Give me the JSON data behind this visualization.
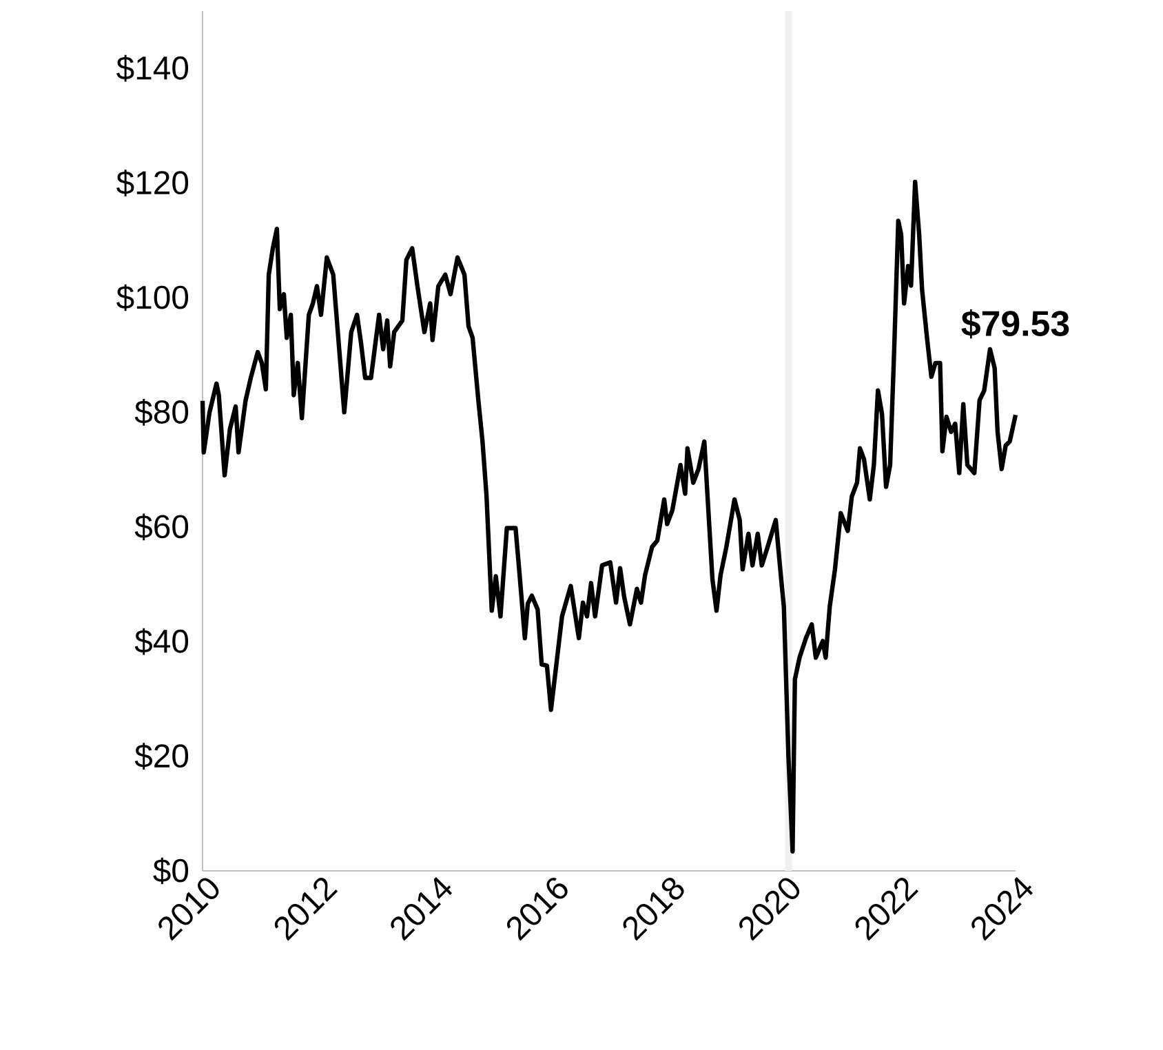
{
  "chart_data": {
    "type": "line",
    "x": [
      2010.0,
      2010.02,
      2010.12,
      2010.24,
      2010.28,
      2010.38,
      2010.47,
      2010.57,
      2010.62,
      2010.74,
      2010.83,
      2010.95,
      2011.02,
      2011.09,
      2011.14,
      2011.21,
      2011.28,
      2011.33,
      2011.4,
      2011.45,
      2011.52,
      2011.57,
      2011.64,
      2011.71,
      2011.83,
      2011.9,
      2011.97,
      2012.04,
      2012.14,
      2012.25,
      2012.44,
      2012.56,
      2012.66,
      2012.73,
      2012.8,
      2012.9,
      2013.04,
      2013.11,
      2013.18,
      2013.23,
      2013.3,
      2013.44,
      2013.51,
      2013.61,
      2013.7,
      2013.82,
      2013.92,
      2013.96,
      2014.06,
      2014.18,
      2014.27,
      2014.39,
      2014.51,
      2014.58,
      2014.65,
      2014.75,
      2014.82,
      2014.89,
      2014.98,
      2015.05,
      2015.13,
      2015.24,
      2015.39,
      2015.46,
      2015.55,
      2015.6,
      2015.67,
      2015.77,
      2015.84,
      2015.93,
      2016.0,
      2016.12,
      2016.19,
      2016.34,
      2016.48,
      2016.55,
      2016.62,
      2016.69,
      2016.76,
      2016.88,
      2017.02,
      2017.12,
      2017.19,
      2017.26,
      2017.36,
      2017.48,
      2017.55,
      2017.62,
      2017.74,
      2017.83,
      2017.95,
      2018.0,
      2018.09,
      2018.23,
      2018.31,
      2018.35,
      2018.45,
      2018.54,
      2018.64,
      2018.78,
      2018.85,
      2018.92,
      2019.02,
      2019.16,
      2019.25,
      2019.3,
      2019.4,
      2019.47,
      2019.56,
      2019.63,
      2019.73,
      2019.87,
      2019.97,
      2020.01,
      2020.09,
      2020.16,
      2020.2,
      2020.28,
      2020.39,
      2020.49,
      2020.56,
      2020.68,
      2020.73,
      2020.8,
      2020.89,
      2020.99,
      2021.11,
      2021.18,
      2021.27,
      2021.32,
      2021.39,
      2021.49,
      2021.56,
      2021.63,
      2021.7,
      2021.77,
      2021.84,
      2021.91,
      2021.98,
      2022.03,
      2022.08,
      2022.15,
      2022.2,
      2022.27,
      2022.34,
      2022.39,
      2022.48,
      2022.55,
      2022.62,
      2022.7,
      2022.74,
      2022.81,
      2022.89,
      2022.96,
      2023.03,
      2023.1,
      2023.17,
      2023.29,
      2023.38,
      2023.46,
      2023.56,
      2023.64,
      2023.69,
      2023.76,
      2023.83,
      2023.9,
      2024.0
    ],
    "series": [
      {
        "color": "#000000",
        "values": [
          82,
          73,
          80,
          85,
          83,
          69,
          77,
          81,
          73,
          82,
          86,
          90.5,
          88.6,
          84,
          104,
          108.6,
          112,
          98,
          100.6,
          93,
          97,
          83,
          88.6,
          79,
          97,
          99,
          102,
          97,
          107,
          104,
          80,
          94,
          97,
          92,
          86,
          86,
          97,
          91,
          96,
          88,
          94,
          96,
          106.6,
          108.6,
          102,
          94,
          99,
          92.6,
          102,
          104,
          100.6,
          107,
          104,
          95,
          93,
          82,
          75,
          65.4,
          45.4,
          51.4,
          44.4,
          59.8,
          59.8,
          51.6,
          40.6,
          46.6,
          48,
          45.6,
          36,
          35.8,
          28.1,
          38.4,
          44.4,
          49.7,
          40.6,
          46.8,
          44.4,
          50.2,
          44.4,
          53.3,
          53.8,
          46.8,
          52.8,
          47.8,
          43,
          49.2,
          46.8,
          51.6,
          56.5,
          57.6,
          64.8,
          60.5,
          62.9,
          70.8,
          65.8,
          73.7,
          67.7,
          70.1,
          74.9,
          50.9,
          45.4,
          51.6,
          56.5,
          64.8,
          61.2,
          52.6,
          58.8,
          53.3,
          58.8,
          53.3,
          56.5,
          61.2,
          50.2,
          46.1,
          19.7,
          3.4,
          33.4,
          37.2,
          40.6,
          43,
          37.2,
          40.1,
          37.2,
          46.1,
          52.6,
          62.4,
          59.3,
          65.3,
          67.7,
          73.7,
          71.8,
          64.8,
          70.8,
          83.8,
          79.7,
          67,
          70.8,
          91,
          113.4,
          111,
          99,
          105.5,
          102.1,
          120.2,
          111,
          101.4,
          92.5,
          86.2,
          88.6,
          88.6,
          73.2,
          79.2,
          76.6,
          78,
          69.4,
          81.4,
          70.8,
          69.4,
          82.1,
          83.8,
          91,
          87.7,
          76.6,
          70.1,
          74.2,
          74.9,
          79.53
        ]
      }
    ],
    "xlim": [
      2010,
      2024
    ],
    "ylim": [
      0,
      150
    ],
    "xticks": [
      2010,
      2012,
      2014,
      2016,
      2018,
      2020,
      2022,
      2024
    ],
    "yticks": [
      {
        "value": 0,
        "label": "$0"
      },
      {
        "value": 20,
        "label": "$20"
      },
      {
        "value": 40,
        "label": "$40"
      },
      {
        "value": 60,
        "label": "$60"
      },
      {
        "value": 80,
        "label": "$80"
      },
      {
        "value": 100,
        "label": "$100"
      },
      {
        "value": 120,
        "label": "$120"
      },
      {
        "value": 140,
        "label": "$140"
      }
    ],
    "bands": [
      {
        "axis": "x",
        "from": 2020.03,
        "to": 2020.15,
        "color": "#f0f0f0"
      }
    ],
    "annotations": [
      {
        "text": "**$79.53**",
        "x": 2024,
        "y": 79.53
      }
    ]
  }
}
